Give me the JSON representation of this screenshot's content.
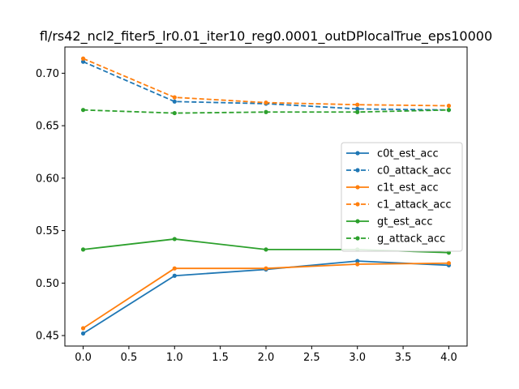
{
  "chart_data": {
    "type": "line",
    "title": "fl/rs42_ncl2_fiter5_lr0.01_iter10_reg0.0001_outDPlocalTrue_eps10000",
    "xlabel": "",
    "ylabel": "",
    "x": [
      0,
      1,
      2,
      3,
      4
    ],
    "xlim": [
      -0.2,
      4.2
    ],
    "ylim": [
      0.44,
      0.725
    ],
    "xticks": [
      "0.0",
      "0.5",
      "1.0",
      "1.5",
      "2.0",
      "2.5",
      "3.0",
      "3.5",
      "4.0"
    ],
    "yticks": [
      "0.45",
      "0.50",
      "0.55",
      "0.60",
      "0.65",
      "0.70"
    ],
    "grid": false,
    "legend_position": "center-right",
    "series": [
      {
        "name": "c0t_est_acc",
        "color": "#1f77b4",
        "style": "solid",
        "values": [
          0.452,
          0.507,
          0.513,
          0.521,
          0.517
        ]
      },
      {
        "name": "c0_attack_acc",
        "color": "#1f77b4",
        "style": "dashed",
        "values": [
          0.711,
          0.673,
          0.671,
          0.666,
          0.665
        ]
      },
      {
        "name": "c1t_est_acc",
        "color": "#ff7f0e",
        "style": "solid",
        "values": [
          0.457,
          0.514,
          0.514,
          0.518,
          0.519
        ]
      },
      {
        "name": "c1_attack_acc",
        "color": "#ff7f0e",
        "style": "dashed",
        "values": [
          0.714,
          0.677,
          0.672,
          0.67,
          0.669
        ]
      },
      {
        "name": "gt_est_acc",
        "color": "#2ca02c",
        "style": "solid",
        "values": [
          0.532,
          0.542,
          0.532,
          0.532,
          0.529
        ]
      },
      {
        "name": "g_attack_acc",
        "color": "#2ca02c",
        "style": "dashed",
        "values": [
          0.665,
          0.662,
          0.663,
          0.663,
          0.665
        ]
      }
    ]
  }
}
